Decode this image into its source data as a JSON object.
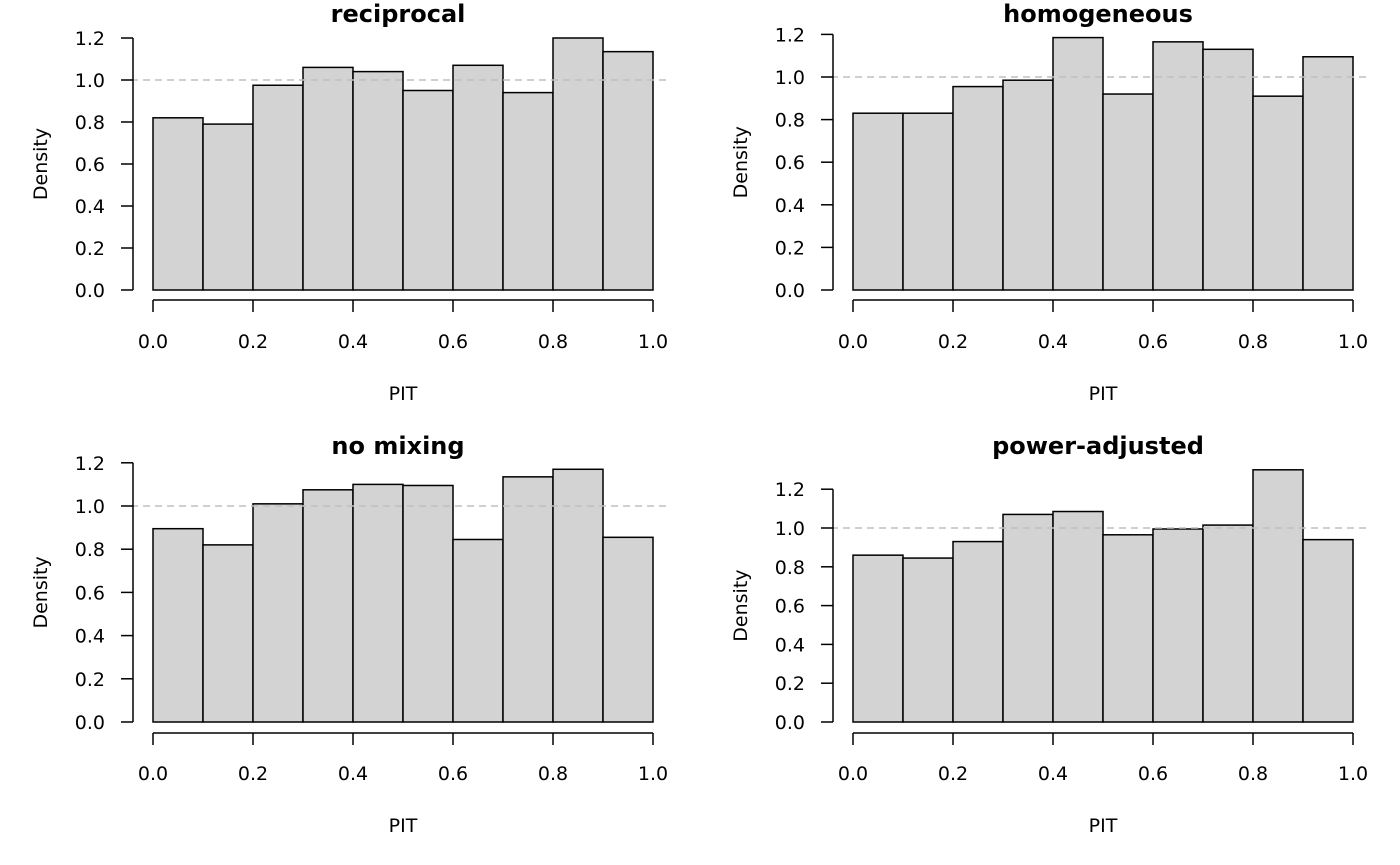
{
  "chart_data": [
    {
      "type": "bar",
      "title": "reciprocal",
      "xlabel": "PIT",
      "ylabel": "Density",
      "bin_edges": [
        0.0,
        0.1,
        0.2,
        0.3,
        0.4,
        0.5,
        0.6,
        0.7,
        0.8,
        0.9,
        1.0
      ],
      "values": [
        0.82,
        0.79,
        0.975,
        1.06,
        1.04,
        0.95,
        1.07,
        0.94,
        1.2,
        1.135
      ],
      "xlim": [
        0,
        1
      ],
      "ylim": [
        0,
        1.2
      ],
      "xticks": [
        "0.0",
        "0.2",
        "0.4",
        "0.6",
        "0.8",
        "1.0"
      ],
      "yticks": [
        "0.0",
        "0.2",
        "0.4",
        "0.6",
        "0.8",
        "1.0",
        "1.2"
      ],
      "reference_line": 1.0,
      "grid": false
    },
    {
      "type": "bar",
      "title": "homogeneous",
      "xlabel": "PIT",
      "ylabel": "Density",
      "bin_edges": [
        0.0,
        0.1,
        0.2,
        0.3,
        0.4,
        0.5,
        0.6,
        0.7,
        0.8,
        0.9,
        1.0
      ],
      "values": [
        0.83,
        0.83,
        0.955,
        0.985,
        1.185,
        0.92,
        1.165,
        1.13,
        0.91,
        1.095
      ],
      "xlim": [
        0,
        1
      ],
      "ylim": [
        0,
        1.2
      ],
      "xticks": [
        "0.0",
        "0.2",
        "0.4",
        "0.6",
        "0.8",
        "1.0"
      ],
      "yticks": [
        "0.0",
        "0.2",
        "0.4",
        "0.6",
        "0.8",
        "1.0",
        "1.2"
      ],
      "reference_line": 1.0,
      "grid": false
    },
    {
      "type": "bar",
      "title": "no mixing",
      "xlabel": "PIT",
      "ylabel": "Density",
      "bin_edges": [
        0.0,
        0.1,
        0.2,
        0.3,
        0.4,
        0.5,
        0.6,
        0.7,
        0.8,
        0.9,
        1.0
      ],
      "values": [
        0.895,
        0.82,
        1.01,
        1.075,
        1.1,
        1.095,
        0.845,
        1.135,
        1.17,
        0.855
      ],
      "xlim": [
        0,
        1
      ],
      "ylim": [
        0,
        1.2
      ],
      "xticks": [
        "0.0",
        "0.2",
        "0.4",
        "0.6",
        "0.8",
        "1.0"
      ],
      "yticks": [
        "0.0",
        "0.2",
        "0.4",
        "0.6",
        "0.8",
        "1.0",
        "1.2"
      ],
      "reference_line": 1.0,
      "grid": false
    },
    {
      "type": "bar",
      "title": "power-adjusted",
      "xlabel": "PIT",
      "ylabel": "Density",
      "bin_edges": [
        0.0,
        0.1,
        0.2,
        0.3,
        0.4,
        0.5,
        0.6,
        0.7,
        0.8,
        0.9,
        1.0
      ],
      "values": [
        0.86,
        0.845,
        0.93,
        1.07,
        1.085,
        0.965,
        0.995,
        1.015,
        1.3,
        0.94
      ],
      "xlim": [
        0,
        1
      ],
      "ylim": [
        0,
        1.2
      ],
      "xticks": [
        "0.0",
        "0.2",
        "0.4",
        "0.6",
        "0.8",
        "1.0"
      ],
      "yticks": [
        "0.0",
        "0.2",
        "0.4",
        "0.6",
        "0.8",
        "1.0",
        "1.2"
      ],
      "reference_line": 1.0,
      "grid": false
    }
  ]
}
